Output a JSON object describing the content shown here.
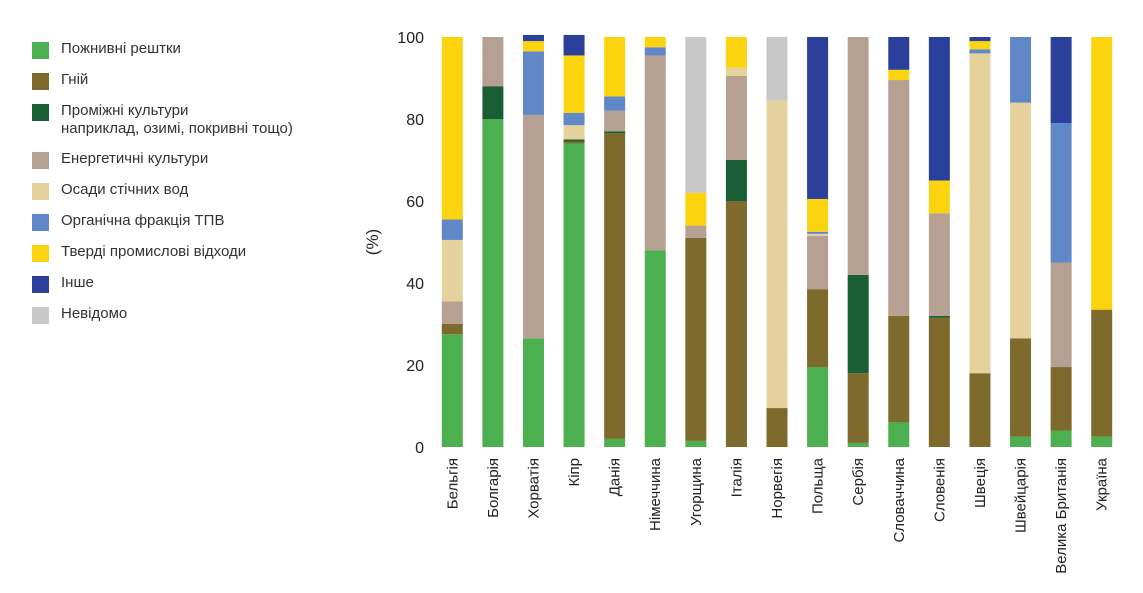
{
  "chart_data": {
    "type": "bar",
    "stacked": true,
    "xlabel": "",
    "ylabel": "(%)",
    "ylim": [
      0,
      100
    ],
    "yticks": [
      0,
      20,
      40,
      60,
      80,
      100
    ],
    "grid": false,
    "legend_position": "left",
    "categories": [
      "Бельгія",
      "Болгарія",
      "Хорватія",
      "Кіпр",
      "Данія",
      "Німеччина",
      "Угорщина",
      "Італія",
      "Норвегія",
      "Польща",
      "Сербія",
      "Словаччина",
      "Словенія",
      "Швеція",
      "Швейцарія",
      "Велика Британія",
      "Україна"
    ],
    "series": [
      {
        "name": "Пожнивні рештки",
        "color": "#4caf50",
        "values": [
          27.5,
          80,
          26.5,
          74,
          2,
          48,
          1.5,
          0,
          0,
          19.5,
          1,
          6,
          0,
          0,
          2.5,
          4,
          2.5
        ]
      },
      {
        "name": "Гній",
        "color": "#7e6a2c",
        "values": [
          2.5,
          0,
          0,
          0.5,
          74.5,
          0,
          49.5,
          60,
          9.5,
          19,
          17,
          26,
          31.5,
          18,
          24,
          15.5,
          31
        ]
      },
      {
        "name": "Проміжні культури\nнаприклад, озимі, покривні тощо)",
        "color": "#195e34",
        "values": [
          0,
          8,
          0,
          0.5,
          0.5,
          0,
          0,
          10,
          0,
          0,
          24,
          0,
          0.5,
          0,
          0,
          0,
          0
        ]
      },
      {
        "name": "Енергетичні культури",
        "color": "#b6a092",
        "values": [
          5.5,
          12,
          54.5,
          0,
          5,
          47.5,
          3,
          20.5,
          0,
          13,
          58,
          57.5,
          25,
          0,
          0,
          25.5,
          0
        ]
      },
      {
        "name": "Осади стічних вод",
        "color": "#e5d19c",
        "values": [
          15,
          0,
          0,
          3.5,
          0,
          0,
          0,
          2,
          75,
          0.5,
          0,
          0,
          0,
          78,
          57.5,
          0,
          0
        ]
      },
      {
        "name": "Органічна фракція ТПВ",
        "color": "#6088c8",
        "values": [
          5,
          0,
          15.5,
          3,
          3.5,
          2,
          0,
          0,
          0,
          0.5,
          0,
          0,
          0,
          1,
          16,
          34,
          0
        ]
      },
      {
        "name": "Тверді промислові відходи",
        "color": "#fbd30e",
        "values": [
          44.5,
          0,
          2.5,
          14,
          14.5,
          2.5,
          8,
          7.5,
          0,
          8,
          0,
          2.5,
          8,
          2,
          0,
          0,
          66.5
        ]
      },
      {
        "name": "Інше",
        "color": "#2b409a",
        "values": [
          0,
          0,
          1.5,
          5,
          0,
          0,
          0,
          0,
          0,
          39.5,
          0,
          8,
          35,
          1,
          0,
          21,
          0
        ]
      },
      {
        "name": "Невідомо",
        "color": "#c8c8c8",
        "values": [
          0,
          0,
          0,
          0,
          0,
          0,
          38,
          0,
          15.5,
          0,
          0,
          0,
          0,
          0,
          0,
          0,
          0
        ]
      }
    ]
  }
}
